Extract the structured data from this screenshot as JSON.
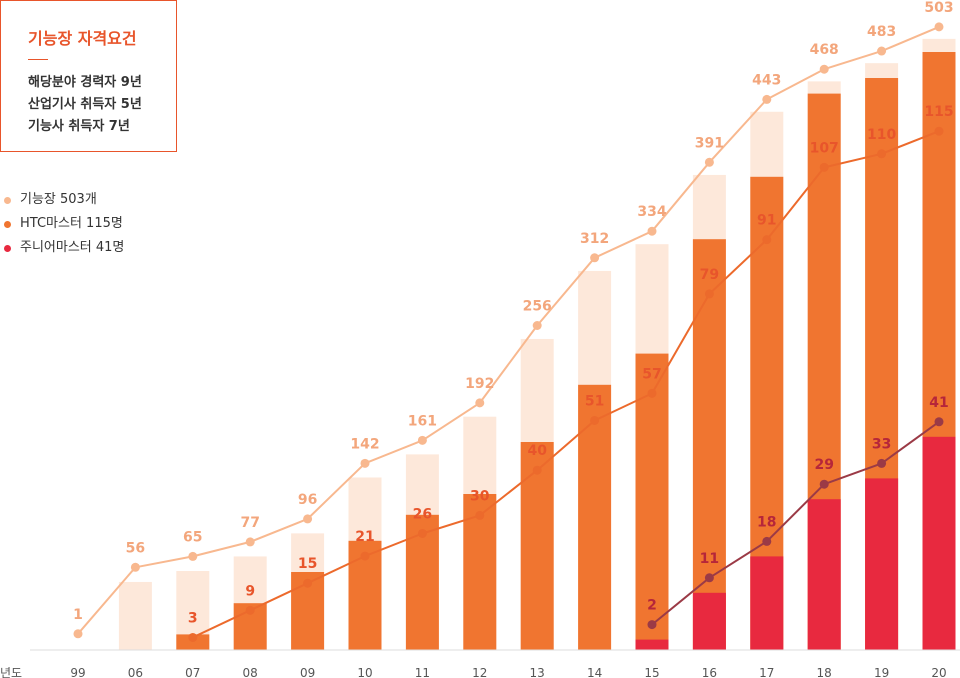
{
  "info": {
    "title": "기능장 자격요건",
    "lines": [
      "해당분야 경력자 9년",
      "산업기사 취득자 5년",
      "기능사 취득자 7년"
    ]
  },
  "legend": [
    {
      "label": "기능장 503개",
      "color": "#f8b88f"
    },
    {
      "label": "HTC마스터 115명",
      "color": "#f07530"
    },
    {
      "label": "주니어마스터 41명",
      "color": "#e8293f"
    }
  ],
  "chart_data": {
    "type": "bar",
    "xlabel": "년도",
    "categories": [
      "99",
      "06",
      "07",
      "08",
      "09",
      "10",
      "11",
      "12",
      "13",
      "14",
      "15",
      "16",
      "17",
      "18",
      "19",
      "20"
    ],
    "series": [
      {
        "name": "기능장",
        "values": [
          1,
          56,
          65,
          77,
          96,
          142,
          161,
          192,
          256,
          312,
          334,
          391,
          443,
          468,
          483,
          503
        ],
        "bar_color": "#fde8da",
        "line_color": "#f8b88f",
        "label_color": "#f3a67c"
      },
      {
        "name": "HTC마스터",
        "values": [
          null,
          null,
          3,
          9,
          15,
          21,
          26,
          30,
          40,
          51,
          57,
          79,
          91,
          107,
          110,
          115
        ],
        "bar_color": "#f07530",
        "line_color": "#ec6a2c",
        "label_color": "#e8552b"
      },
      {
        "name": "주니어마스터",
        "values": [
          null,
          null,
          null,
          null,
          null,
          null,
          null,
          null,
          null,
          null,
          2,
          11,
          18,
          29,
          33,
          41
        ],
        "bar_color": "#e8293f",
        "line_color": "#9b3a46",
        "label_color": "#b6263a"
      }
    ]
  }
}
